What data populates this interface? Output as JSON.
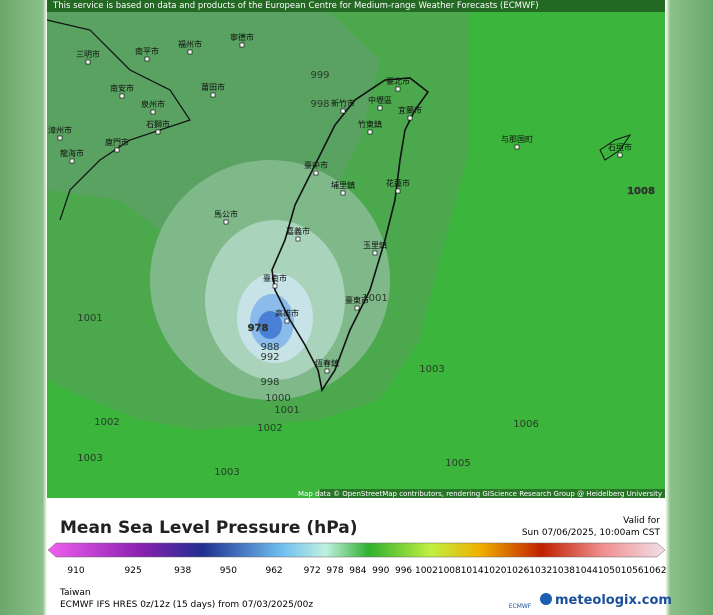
{
  "banner": "This service is based on data and products of the European Centre for Medium-range Weather Forecasts (ECMWF)",
  "isobars": [
    999,
    998,
    1001,
    978,
    988,
    992,
    998,
    1000,
    1001,
    1002,
    1002,
    1003,
    1003,
    1003,
    1005,
    1006,
    1008,
    1001
  ],
  "places": [
    "臺北市",
    "新竹市",
    "中壢區",
    "竹東鎮",
    "宜蘭市",
    "臺中市",
    "埔里鎮",
    "花蓮市",
    "嘉義市",
    "玉里鎮",
    "臺南市",
    "高雄市",
    "臺東市",
    "恆春鎮",
    "馬公市",
    "与那国町",
    "石垣市",
    "寧德市",
    "福州市",
    "南平市",
    "三明市",
    "莆田市",
    "泉州市",
    "南安市",
    "石獅市",
    "漳州市",
    "廈門市",
    "龍海市"
  ],
  "attribution": "Map data © OpenStreetMap contributors, rendering GIScience Research Group @ Heidelberg University",
  "title": "Mean Sea Level Pressure (hPa)",
  "valid_label": "Valid for",
  "valid_time": "Sun 07/06/2025, 10:00am CST",
  "scale": {
    "ticks": [
      910,
      925,
      938,
      950,
      962,
      972,
      978,
      984,
      990,
      996,
      1002,
      1008,
      1014,
      1020,
      1026,
      1032,
      1038,
      1044,
      1050,
      1056,
      1062
    ]
  },
  "region": "Taiwan",
  "model": "ECMWF IFS HRES 0z/12z (15 days) from 07/03/2025/00z",
  "logo_small": "ECMWF",
  "logo": "meteologix.com"
}
